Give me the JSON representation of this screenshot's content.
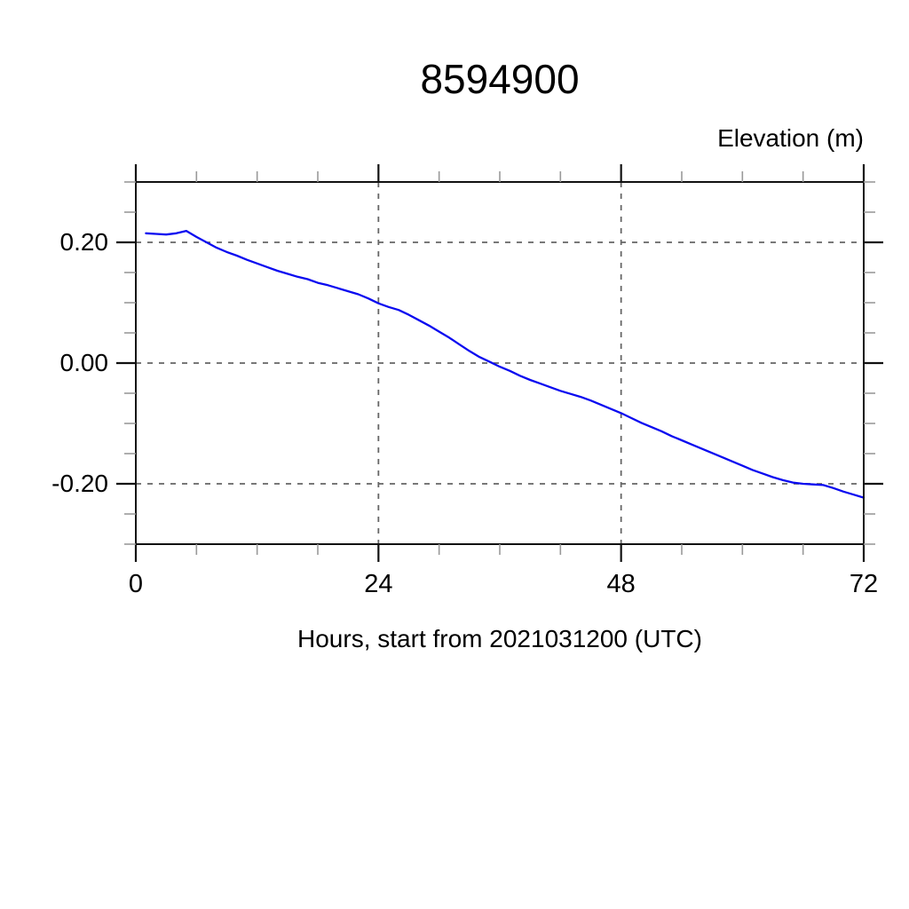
{
  "page": {
    "title": "8594900",
    "y_axis_label": "Elevation (m)",
    "x_axis_label": "Hours, start from 2021031200 (UTC)"
  },
  "chart_data": {
    "type": "line",
    "title": "8594900",
    "ylabel": "Elevation (m)",
    "xlabel": "Hours, start from 2021031200 (UTC)",
    "xlim": [
      0,
      72
    ],
    "ylim": [
      -0.3,
      0.3
    ],
    "grid": "dashed at major ticks",
    "legend_position": "none",
    "x_tick_labels": [
      "0",
      "24",
      "48",
      "72"
    ],
    "y_tick_labels": [
      "0.20",
      "0.00",
      "-0.20"
    ],
    "x_major_ticks": [
      0,
      24,
      48,
      72
    ],
    "x_minor_tick_interval": 6,
    "y_major_ticks": [
      0.2,
      0.0,
      -0.2
    ],
    "y_minor_tick_interval": 0.05,
    "grid_x": [
      24,
      48
    ],
    "grid_y": [
      0.2,
      0.0,
      -0.2
    ],
    "series": [
      {
        "name": "elevation",
        "color": "#0a0af0",
        "x": [
          1,
          2,
          3,
          4,
          5,
          6,
          7,
          8,
          9,
          10,
          11,
          12,
          13,
          14,
          15,
          16,
          17,
          18,
          19,
          20,
          21,
          22,
          23,
          24,
          25,
          26,
          27,
          28,
          29,
          30,
          31,
          32,
          33,
          34,
          35,
          36,
          37,
          38,
          39,
          40,
          41,
          42,
          43,
          44,
          45,
          46,
          47,
          48,
          49,
          50,
          51,
          52,
          53,
          54,
          55,
          56,
          57,
          58,
          59,
          60,
          61,
          62,
          63,
          64,
          65,
          66,
          67,
          68,
          69,
          70,
          71,
          72
        ],
        "values": [
          0.215,
          0.214,
          0.213,
          0.215,
          0.219,
          0.209,
          0.2,
          0.191,
          0.184,
          0.178,
          0.171,
          0.165,
          0.159,
          0.153,
          0.148,
          0.143,
          0.139,
          0.133,
          0.129,
          0.124,
          0.119,
          0.114,
          0.107,
          0.099,
          0.093,
          0.088,
          0.08,
          0.071,
          0.062,
          0.052,
          0.042,
          0.031,
          0.02,
          0.01,
          0.002,
          -0.006,
          -0.013,
          -0.021,
          -0.028,
          -0.034,
          -0.04,
          -0.046,
          -0.051,
          -0.056,
          -0.062,
          -0.069,
          -0.076,
          -0.083,
          -0.091,
          -0.099,
          -0.106,
          -0.113,
          -0.121,
          -0.128,
          -0.135,
          -0.142,
          -0.149,
          -0.156,
          -0.163,
          -0.17,
          -0.177,
          -0.183,
          -0.189,
          -0.194,
          -0.198,
          -0.2,
          -0.201,
          -0.202,
          -0.207,
          -0.213,
          -0.218,
          -0.223
        ]
      }
    ],
    "colors": {
      "line": "#0a0af0",
      "axis": "#111111",
      "major_tick": "#111111",
      "minor_tick": "#999999",
      "grid": "#666666",
      "text": "#000000",
      "background": "#ffffff"
    }
  }
}
